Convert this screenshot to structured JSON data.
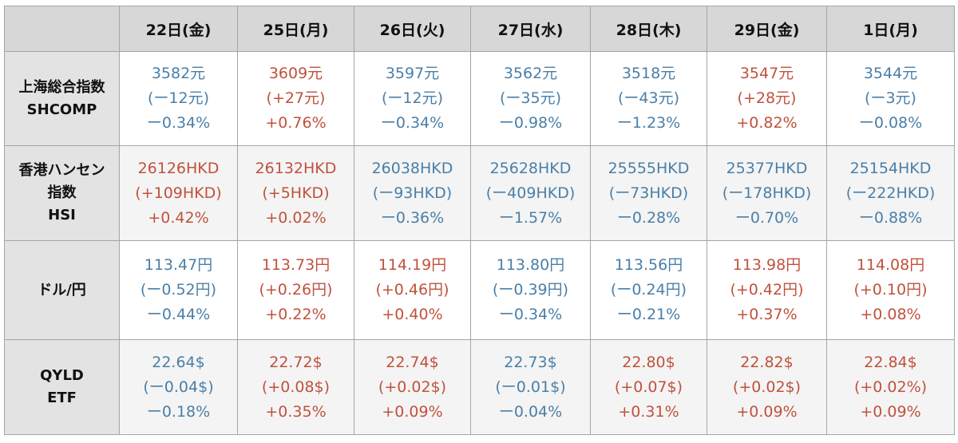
{
  "colors": {
    "up": "#c0523d",
    "down": "#4a7fa8",
    "header_bg": "#d7d7d7"
  },
  "columns": [
    "22日(金)",
    "25日(月)",
    "26日(火)",
    "27日(水)",
    "28日(木)",
    "29日(金)",
    "1日(月)"
  ],
  "rows": [
    {
      "label": [
        "上海総合指数",
        "SHCOMP"
      ],
      "cells": [
        {
          "dir": "down",
          "lines": [
            "3582元",
            "(ー12元)",
            "ー0.34%"
          ]
        },
        {
          "dir": "up",
          "lines": [
            "3609元",
            "(+27元)",
            "+0.76%"
          ]
        },
        {
          "dir": "down",
          "lines": [
            "3597元",
            "(ー12元)",
            "ー0.34%"
          ]
        },
        {
          "dir": "down",
          "lines": [
            "3562元",
            "(ー35元)",
            "ー0.98%"
          ]
        },
        {
          "dir": "down",
          "lines": [
            "3518元",
            "(ー43元)",
            "ー1.23%"
          ]
        },
        {
          "dir": "up",
          "lines": [
            "3547元",
            "(+28元)",
            "+0.82%"
          ]
        },
        {
          "dir": "down",
          "lines": [
            "3544元",
            "(ー3元)",
            "ー0.08%"
          ]
        }
      ]
    },
    {
      "label": [
        "香港ハンセン",
        "指数",
        "HSI"
      ],
      "cells": [
        {
          "dir": "up",
          "lines": [
            "26126HKD",
            "(+109HKD)",
            "+0.42%"
          ]
        },
        {
          "dir": "up",
          "lines": [
            "26132HKD",
            "(+5HKD)",
            "+0.02%"
          ]
        },
        {
          "dir": "down",
          "lines": [
            "26038HKD",
            "(ー93HKD)",
            "ー0.36%"
          ]
        },
        {
          "dir": "down",
          "lines": [
            "25628HKD",
            "(ー409HKD)",
            "ー1.57%"
          ]
        },
        {
          "dir": "down",
          "lines": [
            "25555HKD",
            "(ー73HKD)",
            "ー0.28%"
          ]
        },
        {
          "dir": "down",
          "lines": [
            "25377HKD",
            "(ー178HKD)",
            "ー0.70%"
          ]
        },
        {
          "dir": "down",
          "lines": [
            "25154HKD",
            "(ー222HKD)",
            "ー0.88%"
          ]
        }
      ]
    },
    {
      "label": [
        "ドル/円"
      ],
      "cells": [
        {
          "dir": "down",
          "lines": [
            "113.47円",
            "(ー0.52円)",
            "ー0.44%"
          ]
        },
        {
          "dir": "up",
          "lines": [
            "113.73円",
            "(+0.26円)",
            "+0.22%"
          ]
        },
        {
          "dir": "up",
          "lines": [
            "114.19円",
            "(+0.46円)",
            "+0.40%"
          ]
        },
        {
          "dir": "down",
          "lines": [
            "113.80円",
            "(ー0.39円)",
            "ー0.34%"
          ]
        },
        {
          "dir": "down",
          "lines": [
            "113.56円",
            "(ー0.24円)",
            "ー0.21%"
          ]
        },
        {
          "dir": "up",
          "lines": [
            "113.98円",
            "(+0.42円)",
            "+0.37%"
          ]
        },
        {
          "dir": "up",
          "lines": [
            "114.08円",
            "(+0.10円)",
            "+0.08%"
          ]
        }
      ]
    },
    {
      "label": [
        "QYLD",
        "ETF"
      ],
      "cells": [
        {
          "dir": "down",
          "lines": [
            "22.64$",
            "(ー0.04$)",
            "ー0.18%"
          ]
        },
        {
          "dir": "up",
          "lines": [
            "22.72$",
            "(+0.08$)",
            "+0.35%"
          ]
        },
        {
          "dir": "up",
          "lines": [
            "22.74$",
            "(+0.02$)",
            "+0.09%"
          ]
        },
        {
          "dir": "down",
          "lines": [
            "22.73$",
            "(ー0.01$)",
            "ー0.04%"
          ]
        },
        {
          "dir": "up",
          "lines": [
            "22.80$",
            "(+0.07$)",
            "+0.31%"
          ]
        },
        {
          "dir": "up",
          "lines": [
            "22.82$",
            "(+0.02$)",
            "+0.09%"
          ]
        },
        {
          "dir": "up",
          "lines": [
            "22.84$",
            "(+0.02%)",
            "+0.09%"
          ]
        }
      ]
    }
  ]
}
